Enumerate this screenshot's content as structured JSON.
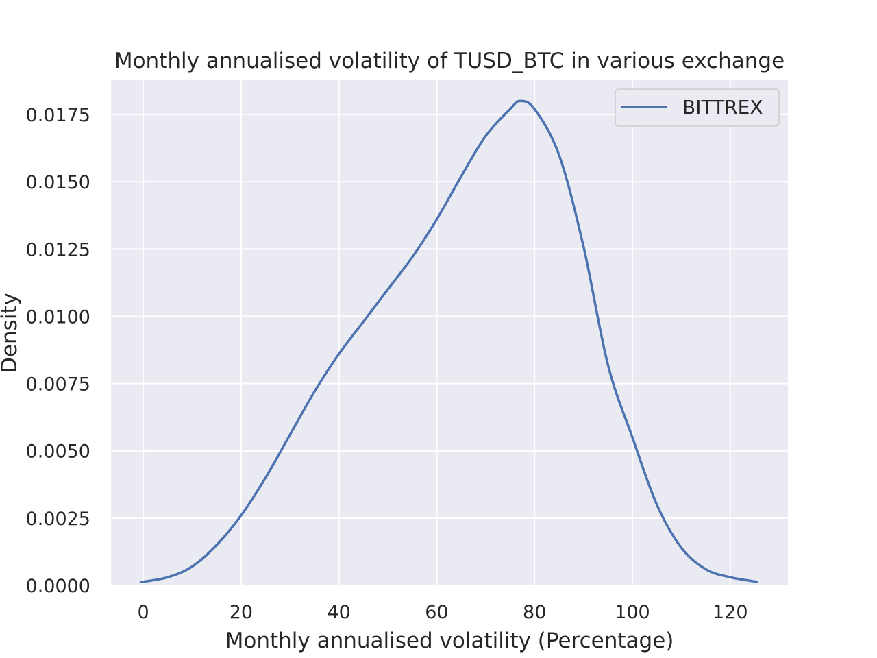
{
  "chart_data": {
    "type": "line",
    "title": "Monthly annualised volatility of TUSD_BTC in various exchange",
    "xlabel": "Monthly annualised volatility (Percentage)",
    "ylabel": "Density",
    "xlim": [
      -6.6,
      131.8
    ],
    "ylim": [
      0,
      0.0188
    ],
    "x_ticks": [
      0,
      20,
      40,
      60,
      80,
      100,
      120
    ],
    "x_tick_labels": [
      "0",
      "20",
      "40",
      "60",
      "80",
      "100",
      "120"
    ],
    "y_ticks": [
      0,
      0.0025,
      0.005,
      0.0075,
      0.01,
      0.0125,
      0.015,
      0.0175
    ],
    "y_tick_labels": [
      "0.0000",
      "0.0025",
      "0.0050",
      "0.0075",
      "0.0100",
      "0.0125",
      "0.0150",
      "0.0175"
    ],
    "grid": true,
    "legend_position": "top-right",
    "series": [
      {
        "name": "BITTREX",
        "color": "#4c72b0",
        "x": [
          -0.5,
          5,
          10,
          15,
          20,
          25,
          30,
          35,
          40,
          45,
          50,
          55,
          60,
          65,
          70,
          75,
          77,
          80,
          85,
          90,
          95,
          100,
          105,
          110,
          115,
          120,
          125.5
        ],
        "y": [
          0.00012,
          0.0003,
          0.0007,
          0.0015,
          0.0026,
          0.004,
          0.0056,
          0.0072,
          0.0086,
          0.0098,
          0.011,
          0.0122,
          0.0136,
          0.0152,
          0.0167,
          0.0177,
          0.018,
          0.0177,
          0.016,
          0.0126,
          0.0082,
          0.0055,
          0.003,
          0.0014,
          0.0006,
          0.0003,
          0.00013
        ]
      }
    ]
  }
}
